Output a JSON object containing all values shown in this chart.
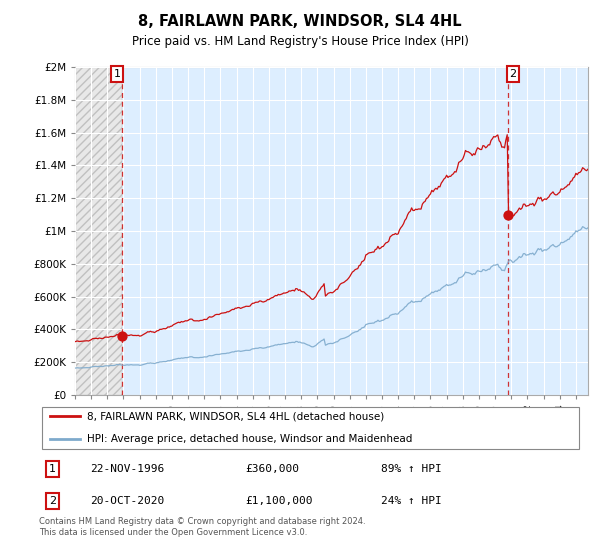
{
  "title": "8, FAIRLAWN PARK, WINDSOR, SL4 4HL",
  "subtitle": "Price paid vs. HM Land Registry's House Price Index (HPI)",
  "legend_line1": "8, FAIRLAWN PARK, WINDSOR, SL4 4HL (detached house)",
  "legend_line2": "HPI: Average price, detached house, Windsor and Maidenhead",
  "annotation1_date": "22-NOV-1996",
  "annotation1_price": "£360,000",
  "annotation1_hpi": "89% ↑ HPI",
  "annotation2_date": "20-OCT-2020",
  "annotation2_price": "£1,100,000",
  "annotation2_hpi": "24% ↑ HPI",
  "footnote": "Contains HM Land Registry data © Crown copyright and database right 2024.\nThis data is licensed under the Open Government Licence v3.0.",
  "hpi_color": "#7eaacc",
  "price_color": "#cc1111",
  "dot_color": "#cc1111",
  "bg_hatch_color": "#d8d8d8",
  "bg_main_color": "#ddeeff",
  "grid_color": "#ffffff",
  "ylim": [
    0,
    2000000
  ],
  "xlim_start": 1994.0,
  "xlim_end": 2025.75,
  "t1_year": 1996.9167,
  "t2_year": 2020.7917,
  "t1_price": 360000,
  "t2_price": 1100000
}
